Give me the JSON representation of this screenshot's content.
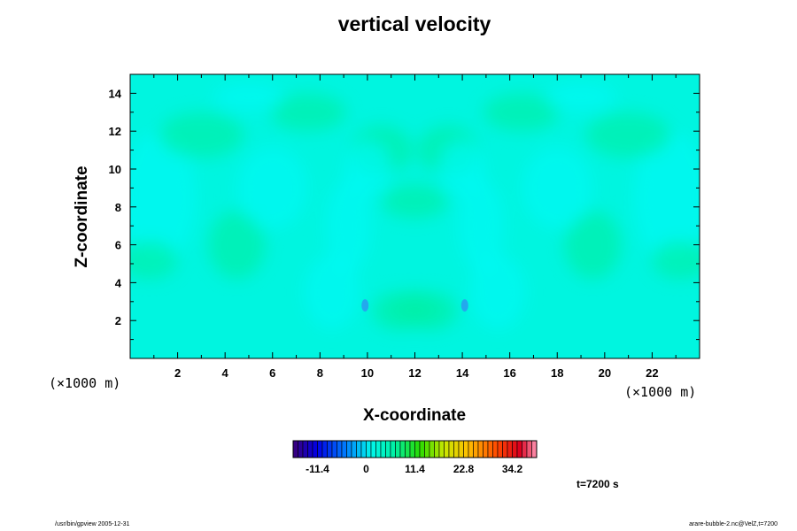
{
  "chart_data": {
    "type": "heatmap",
    "title": "vertical velocity",
    "xlabel": "X-coordinate",
    "ylabel": "Z-coordinate",
    "x_unit": "(×1000 m)",
    "y_unit": "(×1000 m)",
    "xlim": [
      0,
      24
    ],
    "ylim": [
      0,
      15
    ],
    "x_ticks": [
      "2",
      "4",
      "6",
      "8",
      "10",
      "12",
      "14",
      "16",
      "18",
      "20",
      "22"
    ],
    "y_ticks": [
      "2",
      "4",
      "6",
      "8",
      "10",
      "12",
      "14"
    ],
    "colorbar": {
      "min": -17.1,
      "max": 39.9,
      "ticks": [
        "-11.4",
        "0",
        "11.4",
        "22.8",
        "34.2"
      ],
      "tick_values": [
        -11.4,
        0,
        11.4,
        22.8,
        34.2
      ],
      "levels": 50
    },
    "annotation": "t=7200 s"
  },
  "footer": {
    "left": "/usr/bin/gpview 2005-12-31",
    "right": "arare-bubble-2.nc@VelZ,t=7200"
  },
  "colors": {
    "field_base": "#00f5e0",
    "field_greenish": "#00f0a8",
    "field_cyan": "#00f8f4",
    "field_blue_spot": "#2a9af0"
  }
}
